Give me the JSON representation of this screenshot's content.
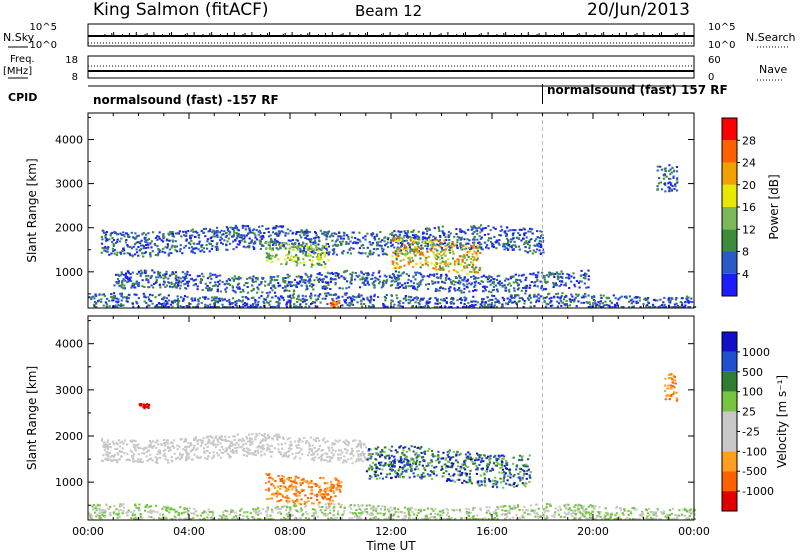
{
  "header": {
    "station": "King Salmon (fitACF)",
    "beam": "Beam 12",
    "date": "20/Jun/2013"
  },
  "status_panels": {
    "nsky": {
      "left_label": "N.Sky",
      "right_label": "N.Search",
      "ticks": [
        "10^5",
        "10^0"
      ]
    },
    "freq": {
      "left_label": "Freq.",
      "left_unit": "[MHz]",
      "left_ticks": [
        "18",
        "8"
      ],
      "right_label": "Nave",
      "right_ticks": [
        "60",
        "0"
      ]
    },
    "cpid": {
      "label": "CPID",
      "segments": [
        "normalsound (fast) -157 RF",
        "normalsound (fast) 157 RF"
      ]
    }
  },
  "colors": {
    "power_scale": [
      "#1c1cff",
      "#2a5ac8",
      "#3c8c3c",
      "#7ab85a",
      "#e8e800",
      "#f0a000",
      "#ff6000",
      "#ff0000"
    ],
    "velocity_scale": [
      "#1010c8",
      "#2050d0",
      "#2e7d32",
      "#76c442",
      "#c8c8c8",
      "#c8c8c8",
      "#ff9f20",
      "#ff6000",
      "#e00000"
    ]
  },
  "chart_data": [
    {
      "type": "heatmap",
      "name": "Power",
      "ylabel": "Slant Range [km]",
      "yticks": [
        1000,
        2000,
        3000,
        4000
      ],
      "ylim": [
        180,
        4600
      ],
      "xlim": [
        0,
        24
      ],
      "colorbar": {
        "label": "Power [dB]",
        "ticks": [
          4,
          8,
          12,
          16,
          20,
          24,
          28
        ],
        "range": [
          0,
          32
        ]
      },
      "scatter_bands": [
        {
          "time": [
            0.5,
            18.0
          ],
          "range": [
            1450,
            2000
          ],
          "value": "6-14 dB"
        },
        {
          "time": [
            7.0,
            9.5
          ],
          "range": [
            1200,
            1700
          ],
          "value": "12-20 dB"
        },
        {
          "time": [
            12.0,
            15.5
          ],
          "range": [
            1000,
            1700
          ],
          "value": "16-28 dB"
        },
        {
          "time": [
            1.0,
            19.8
          ],
          "range": [
            600,
            1000
          ],
          "value": "4-12 dB"
        },
        {
          "time": [
            0.0,
            24.0
          ],
          "range": [
            180,
            500
          ],
          "value": "4-16 dB"
        },
        {
          "time": [
            9.5,
            9.9
          ],
          "range": [
            200,
            350
          ],
          "value": "24-30 dB"
        },
        {
          "time": [
            22.5,
            23.3
          ],
          "range": [
            2800,
            3400
          ],
          "value": "4-10 dB"
        }
      ]
    },
    {
      "type": "heatmap",
      "name": "Velocity",
      "ylabel": "Slant Range [km]",
      "xlabel": "Time UT",
      "xticks": [
        "00:00",
        "04:00",
        "08:00",
        "12:00",
        "16:00",
        "20:00",
        "00:00"
      ],
      "yticks": [
        1000,
        2000,
        3000,
        4000
      ],
      "ylim": [
        180,
        4600
      ],
      "xlim": [
        0,
        24
      ],
      "colorbar": {
        "label": "Velocity [m s⁻¹]",
        "ticks": [
          1000,
          500,
          100,
          25,
          -25,
          -100,
          -500,
          -1000
        ]
      },
      "scatter_bands": [
        {
          "time": [
            0.5,
            11.0
          ],
          "range": [
            1500,
            2000
          ],
          "value": "ground scatter (~0 m/s)"
        },
        {
          "time": [
            7.0,
            10.0
          ],
          "range": [
            600,
            1200
          ],
          "value": "-100 to -500 m/s"
        },
        {
          "time": [
            11.0,
            17.5
          ],
          "range": [
            1000,
            1700
          ],
          "value": "+100 to +1000 m/s"
        },
        {
          "time": [
            2.0,
            2.4
          ],
          "range": [
            2600,
            2700
          ],
          "value": "-500 to -1000 m/s"
        },
        {
          "time": [
            0.0,
            24.0
          ],
          "range": [
            180,
            500
          ],
          "value": "ground / +100 m/s"
        },
        {
          "time": [
            22.8,
            23.3
          ],
          "range": [
            2800,
            3400
          ],
          "value": "-100 to -500 m/s"
        }
      ]
    }
  ]
}
